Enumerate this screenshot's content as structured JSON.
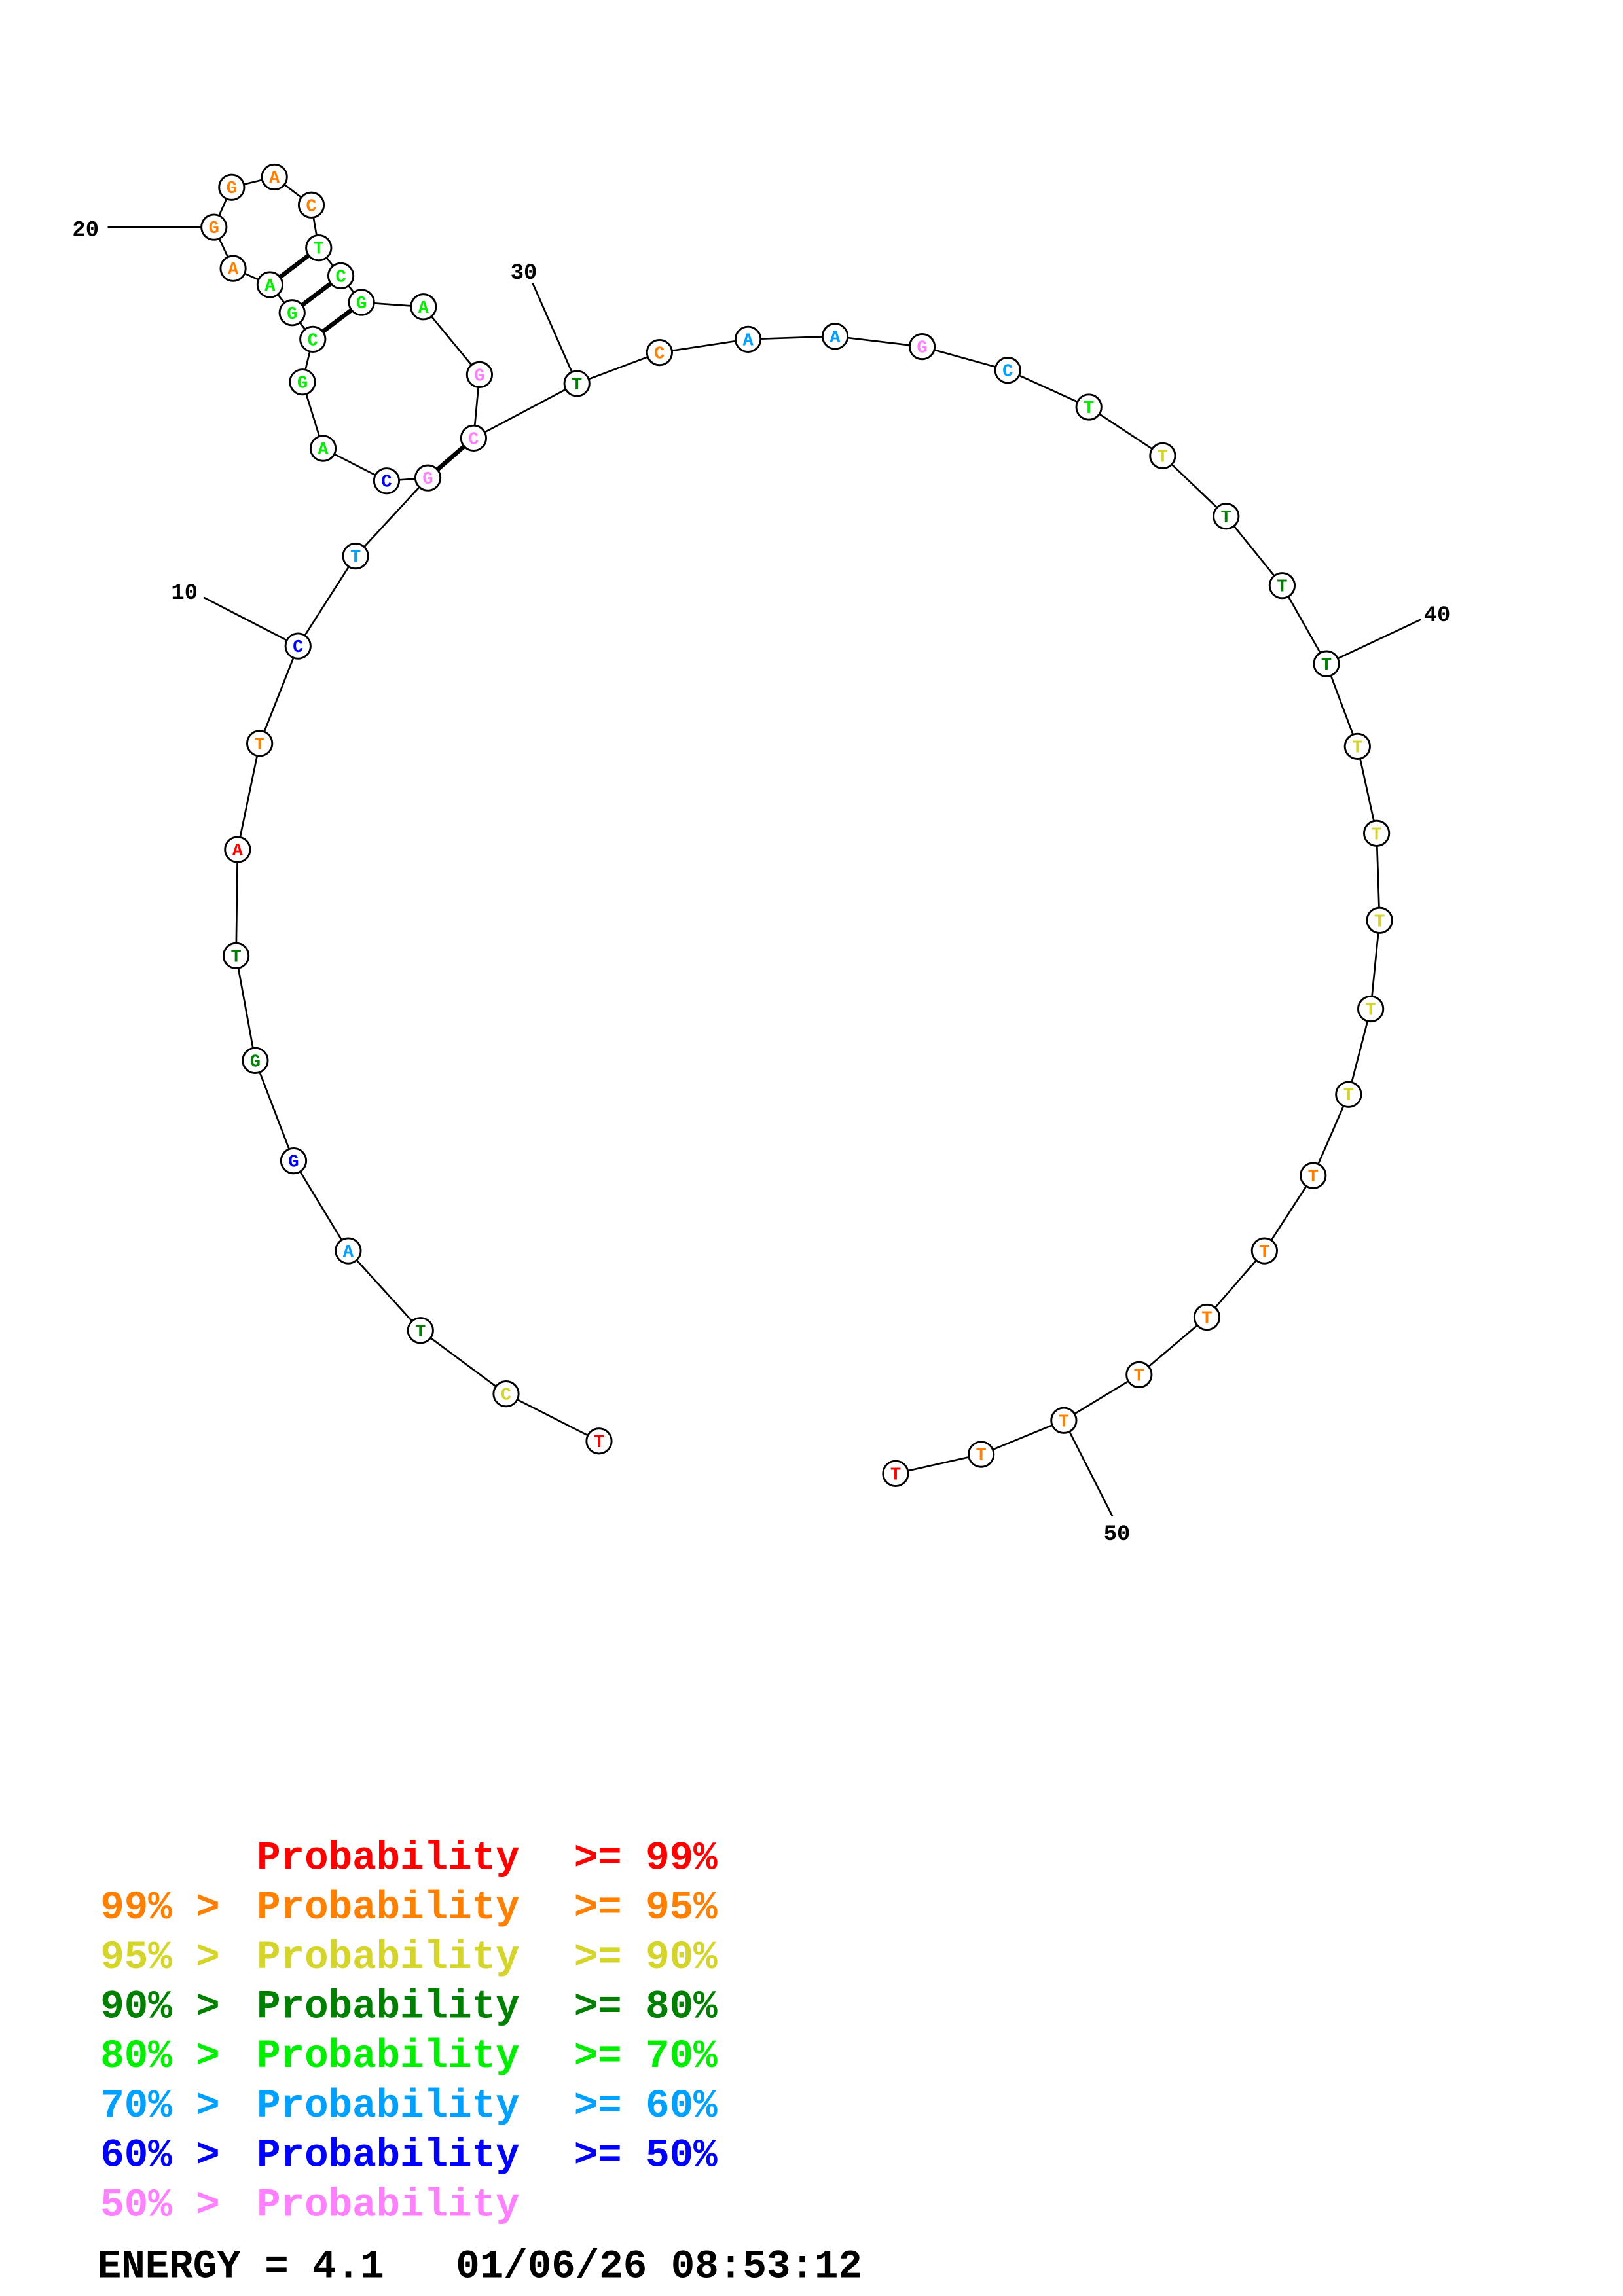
{
  "structure": {
    "sequence": [
      "T",
      "C",
      "T",
      "A",
      "G",
      "G",
      "T",
      "A",
      "T",
      "C",
      "T",
      "G",
      "C",
      "A",
      "G",
      "C",
      "G",
      "A",
      "A",
      "G",
      "G",
      "A",
      "C",
      "T",
      "C",
      "G",
      "A",
      "G",
      "C",
      "T",
      "C",
      "A",
      "A",
      "G",
      "C",
      "T",
      "T",
      "T",
      "T",
      "T",
      "T",
      "T",
      "T",
      "T",
      "T",
      "T",
      "T",
      "T",
      "T",
      "T",
      "T",
      "T"
    ],
    "probability_class": [
      0,
      2,
      3,
      5,
      6,
      3,
      3,
      0,
      1,
      6,
      5,
      7,
      6,
      4,
      4,
      4,
      4,
      4,
      1,
      1,
      1,
      1,
      1,
      4,
      4,
      4,
      4,
      7,
      7,
      3,
      1,
      5,
      5,
      7,
      5,
      4,
      2,
      3,
      3,
      3,
      2,
      2,
      2,
      2,
      2,
      1,
      1,
      1,
      1,
      1,
      1,
      0
    ],
    "base_pairs": [
      [
        12,
        29
      ],
      [
        16,
        26
      ],
      [
        17,
        25
      ],
      [
        18,
        24
      ]
    ],
    "position_ticks": [
      "10",
      "20",
      "30",
      "40",
      "50"
    ]
  },
  "legend": {
    "colors": [
      "#ff0000",
      "#ff8000",
      "#d4d42a",
      "#008000",
      "#00ee00",
      "#00a0ff",
      "#0000ff",
      "#ff80ff"
    ],
    "lines": [
      {
        "prefix": "",
        "label": "Probability",
        "suffix": ">= 99%"
      },
      {
        "prefix": "99% >",
        "label": "Probability",
        "suffix": ">= 95%"
      },
      {
        "prefix": "95% >",
        "label": "Probability",
        "suffix": ">= 90%"
      },
      {
        "prefix": "90% >",
        "label": "Probability",
        "suffix": ">= 80%"
      },
      {
        "prefix": "80% >",
        "label": "Probability",
        "suffix": ">= 70%"
      },
      {
        "prefix": "70% >",
        "label": "Probability",
        "suffix": ">= 60%"
      },
      {
        "prefix": "60% >",
        "label": "Probability",
        "suffix": ">= 50%"
      },
      {
        "prefix": "50% >",
        "label": "Probability",
        "suffix": ""
      }
    ],
    "energy": "ENERGY = 4.1   01/06/26 08:53:12"
  }
}
